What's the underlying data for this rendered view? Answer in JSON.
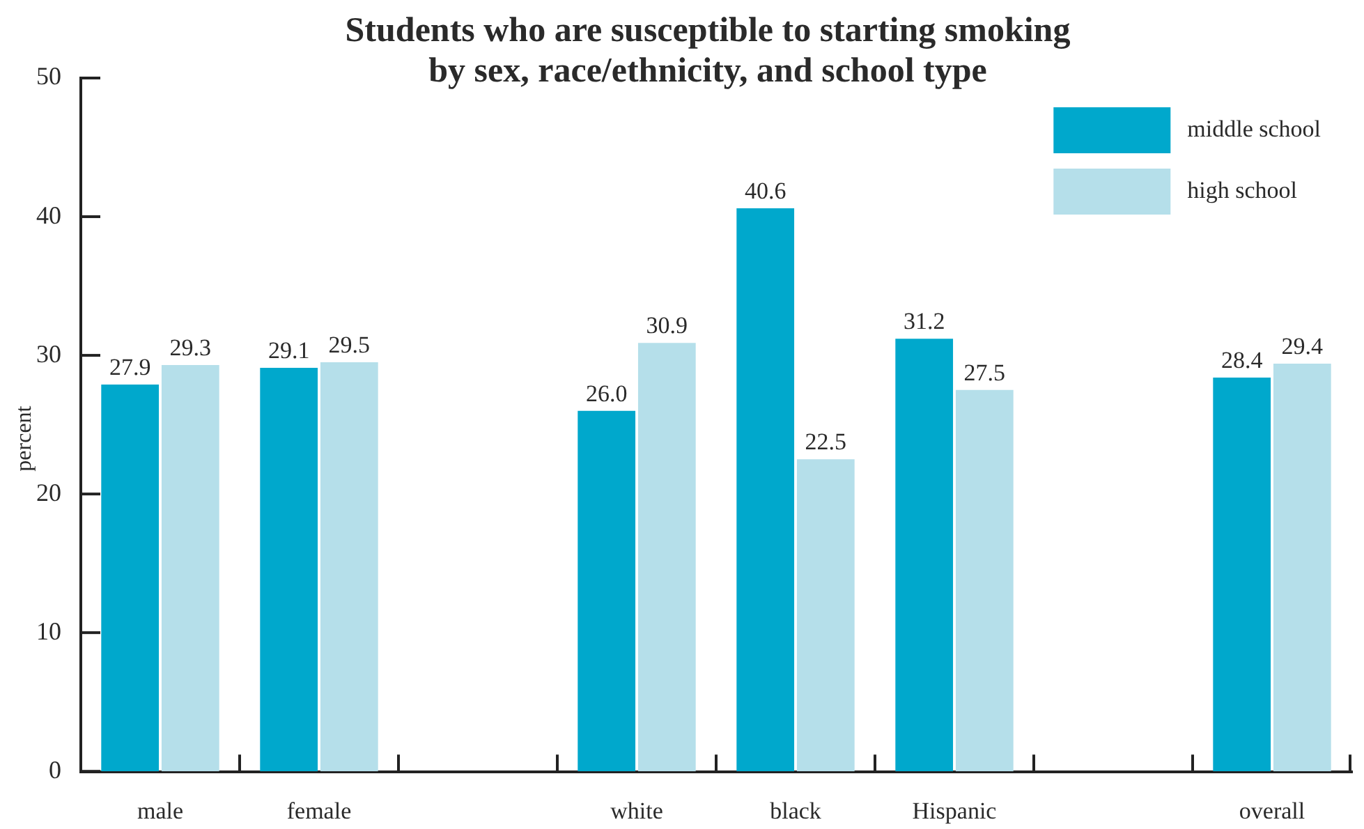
{
  "chart_data": {
    "type": "bar",
    "title": "Students who are susceptible to starting smoking by sex, race/ethnicity, and school type",
    "ylabel": "percent",
    "categories": [
      "male",
      "female",
      null,
      "white",
      "black",
      "Hispanic",
      null,
      "overall"
    ],
    "series": [
      {
        "name": "middle school",
        "color": "#00a8cc",
        "values": [
          27.9,
          29.1,
          null,
          26.0,
          40.6,
          31.2,
          null,
          28.4
        ],
        "value_labels": [
          "27.9",
          "29.1",
          null,
          "26.0",
          "40.6",
          "31.2",
          null,
          "28.4"
        ]
      },
      {
        "name": "high school",
        "color": "#b5dfea",
        "values": [
          29.3,
          29.5,
          null,
          30.9,
          22.5,
          27.5,
          null,
          29.4
        ],
        "value_labels": [
          "29.3",
          "29.5",
          null,
          "30.9",
          "22.5",
          "27.5",
          null,
          "29.4"
        ]
      }
    ],
    "ylim": [
      0,
      50
    ],
    "yticks": [
      0,
      10,
      20,
      30,
      40,
      50
    ],
    "legend": "top right"
  }
}
